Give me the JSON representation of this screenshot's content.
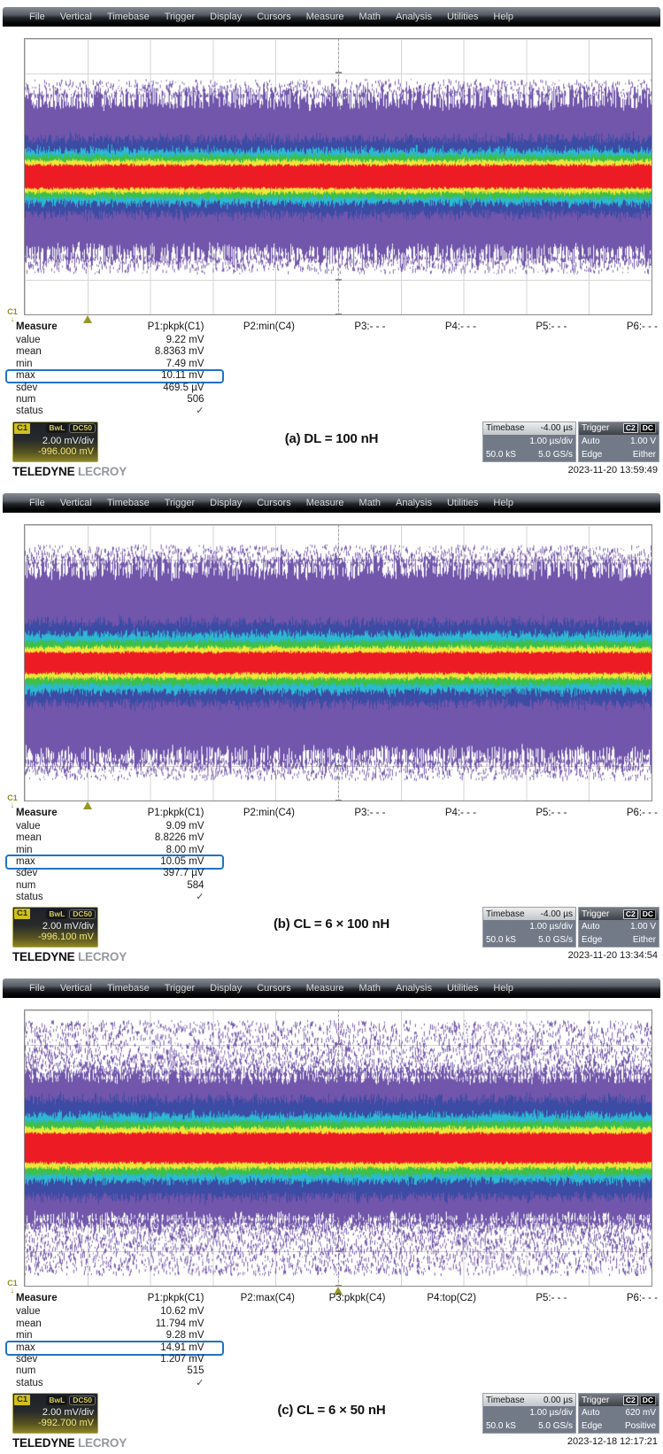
{
  "menu": {
    "items": [
      "File",
      "Vertical",
      "Timebase",
      "Trigger",
      "Display",
      "Cursors",
      "Measure",
      "Math",
      "Analysis",
      "Utilities",
      "Help"
    ]
  },
  "brand": {
    "teledyne": "TELEDYNE",
    "lecroy": "LECROY"
  },
  "icons": {
    "channel_offset_arrow": "↓",
    "status_check": "✓"
  },
  "colors": {
    "highlight_box": "#2272c3",
    "trigger_marker": "#97972b",
    "wave": {
      "purple": "#7156ab",
      "blue": "#3c4ba4",
      "cyan": "#2cb9d2",
      "green": "#3ebf47",
      "yellow": "#efe73a",
      "red": "#ed1b24"
    }
  },
  "scopes": [
    {
      "caption": "(a) DL = 100 nH",
      "timestamp": "2023-11-20 13:59:49",
      "channel": {
        "id": "C1",
        "bw_badge": "BwL",
        "coupling_badge": "DC50",
        "scale": "2.00 mV/div",
        "offset": "-996.000 mV"
      },
      "timebase": {
        "label": "Timebase",
        "delay": "-4.00 µs",
        "scale": "1.00 µs/div",
        "samples": "50.0 kS",
        "rate": "5.0 GS/s"
      },
      "trigger": {
        "label": "Trigger",
        "source": "C2",
        "coupling": "DC",
        "mode": "Auto",
        "level": "1.00 V",
        "type": "Edge",
        "slope": "Either"
      },
      "measure": {
        "headers": [
          "Measure",
          "P1:pkpk(C1)",
          "P2:min(C4)",
          "P3:- - -",
          "P4:- - -",
          "P5:- - -",
          "P6:- - -"
        ],
        "rows": [
          {
            "label": "value",
            "value": "9.22 mV"
          },
          {
            "label": "mean",
            "value": "8.8363 mV"
          },
          {
            "label": "min",
            "value": "7.49 mV"
          },
          {
            "label": "max",
            "value": "10.11 mV",
            "boxed": true
          },
          {
            "label": "sdev",
            "value": "469.5 µV"
          },
          {
            "label": "num",
            "value": "506"
          },
          {
            "label": "status",
            "value": "✓",
            "check": true
          }
        ]
      },
      "trigger_marker_pct": 10,
      "waveform": {
        "seed": 11,
        "dense": 0.25,
        "spike": 0.085,
        "blue": 0.125,
        "cyan": 0.088,
        "green": 0.072,
        "yellow": 0.055,
        "red": 0.04,
        "speckles": 2,
        "speckle_max": 0.355
      }
    },
    {
      "caption": "(b) CL = 6 × 100 nH",
      "timestamp": "2023-11-20 13:34:54",
      "channel": {
        "id": "C1",
        "bw_badge": "BwL",
        "coupling_badge": "DC50",
        "scale": "2.00 mV/div",
        "offset": "-996.100 mV"
      },
      "timebase": {
        "label": "Timebase",
        "delay": "-4.00 µs",
        "scale": "1.00 µs/div",
        "samples": "50.0 kS",
        "rate": "5.0 GS/s"
      },
      "trigger": {
        "label": "Trigger",
        "source": "C2",
        "coupling": "DC",
        "mode": "Auto",
        "level": "1.00 V",
        "type": "Edge",
        "slope": "Either"
      },
      "measure": {
        "headers": [
          "Measure",
          "P1:pkpk(C1)",
          "P2:min(C4)",
          "P3:- - -",
          "P4:- - -",
          "P5:- - -",
          "P6:- - -"
        ],
        "rows": [
          {
            "label": "value",
            "value": "9.09 mV"
          },
          {
            "label": "mean",
            "value": "8.8226 mV"
          },
          {
            "label": "min",
            "value": "8.00 mV"
          },
          {
            "label": "max",
            "value": "10.05 mV",
            "boxed": true
          },
          {
            "label": "sdev",
            "value": "397.7 µV"
          },
          {
            "label": "num",
            "value": "584"
          },
          {
            "label": "status",
            "value": "✓",
            "check": true
          }
        ]
      },
      "trigger_marker_pct": 10,
      "waveform": {
        "seed": 22,
        "dense": 0.31,
        "spike": 0.09,
        "blue": 0.135,
        "cyan": 0.096,
        "green": 0.074,
        "yellow": 0.053,
        "red": 0.036,
        "speckles": 3,
        "speckle_max": 0.43
      }
    },
    {
      "caption": "(c) CL = 6 × 50 nH",
      "timestamp": "2023-12-18 12:17:21",
      "channel": {
        "id": "C1",
        "bw_badge": "BwL",
        "coupling_badge": "DC50",
        "scale": "2.00 mV/div",
        "offset": "-992.700 mV"
      },
      "timebase": {
        "label": "Timebase",
        "delay": "0.00 µs",
        "scale": "1.00 µs/div",
        "samples": "50.0 kS",
        "rate": "5.0 GS/s"
      },
      "trigger": {
        "label": "Trigger",
        "source": "C2",
        "coupling": "DC",
        "mode": "Auto",
        "level": "620 mV",
        "type": "Edge",
        "slope": "Positive"
      },
      "measure": {
        "headers": [
          "Measure",
          "P1:pkpk(C1)",
          "P2:max(C4)",
          "P3:pkpk(C4)",
          "P4:top(C2)",
          "P5:- - -",
          "P6:- - -"
        ],
        "rows": [
          {
            "label": "value",
            "value": "10.62 mV"
          },
          {
            "label": "mean",
            "value": "11.794 mV"
          },
          {
            "label": "min",
            "value": "9.28 mV"
          },
          {
            "label": "max",
            "value": "14.91 mV",
            "boxed": true
          },
          {
            "label": "sdev",
            "value": "1.207 mV"
          },
          {
            "label": "num",
            "value": "515"
          },
          {
            "label": "status",
            "value": "✓",
            "check": true
          }
        ]
      },
      "trigger_marker_pct": 50,
      "waveform": {
        "seed": 33,
        "dense": 0.24,
        "spike": 0.055,
        "blue": 0.165,
        "cyan": 0.112,
        "green": 0.092,
        "yellow": 0.07,
        "red": 0.052,
        "speckles": 9,
        "speckle_max": 0.465
      }
    }
  ]
}
